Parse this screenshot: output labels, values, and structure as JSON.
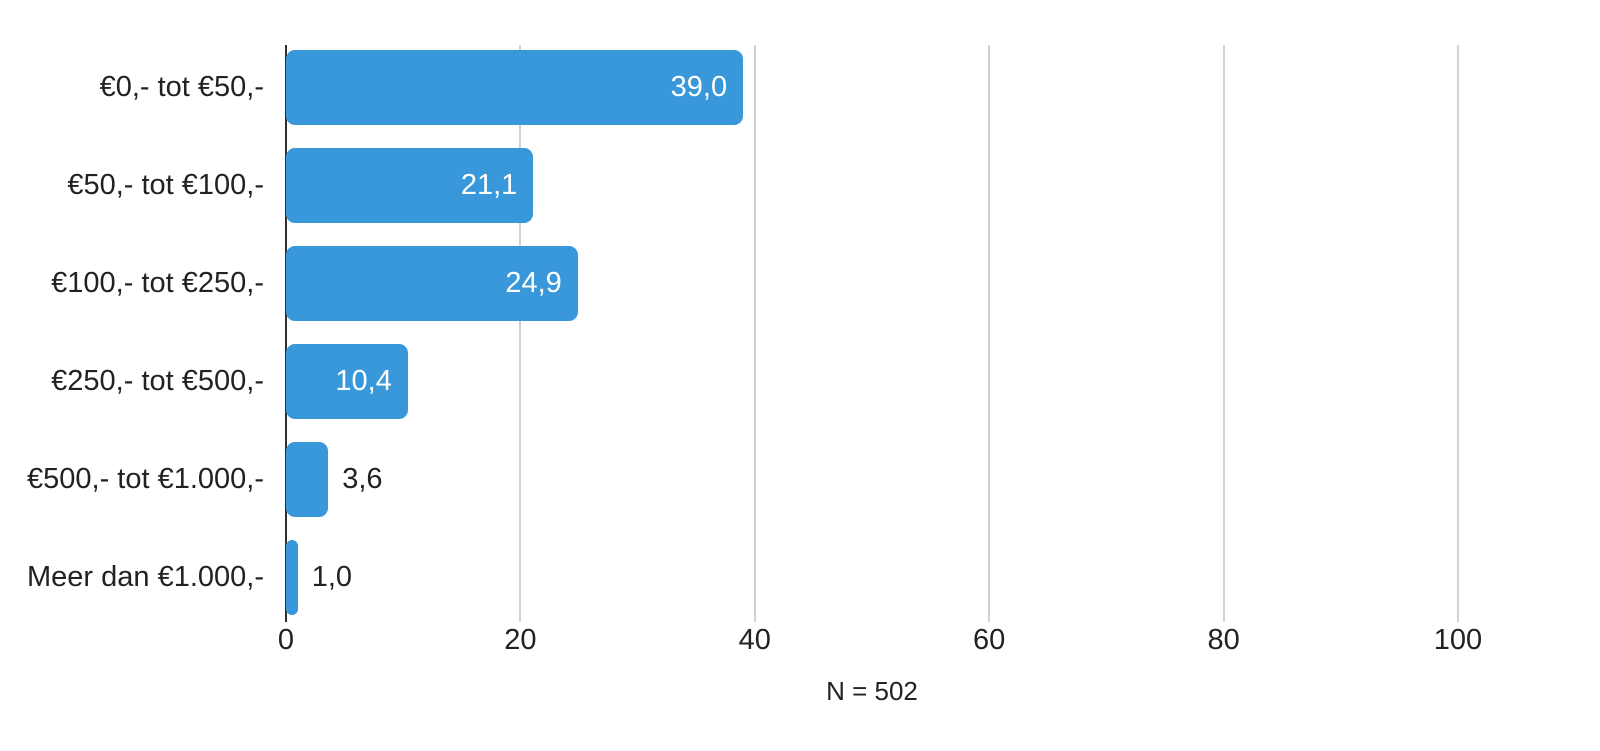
{
  "chart_data": {
    "type": "bar",
    "orientation": "horizontal",
    "title": "",
    "categories": [
      "€0,- tot €50,-",
      "€50,- tot €100,-",
      "€100,- tot €250,-",
      "€250,- tot €500,-",
      "€500,- tot €1.000,-",
      "Meer dan €1.000,-"
    ],
    "values": [
      39.0,
      21.1,
      24.9,
      10.4,
      3.6,
      1.0
    ],
    "value_labels": [
      "39,0",
      "21,1",
      "24,9",
      "10,4",
      "3,6",
      "1,0"
    ],
    "x_ticks": [
      0,
      20,
      40,
      60,
      80,
      100
    ],
    "x_tick_labels": [
      "0",
      "20",
      "40",
      "60",
      "80",
      "100"
    ],
    "xlim": [
      0,
      100
    ],
    "grid": true,
    "legend": false,
    "footnote": "N = 502",
    "colors": {
      "bar": "#3898DA",
      "grid": "#D2D2D2",
      "axis": "#2E2E2E",
      "text": "#222222",
      "value_inside": "#FFFFFF"
    }
  }
}
